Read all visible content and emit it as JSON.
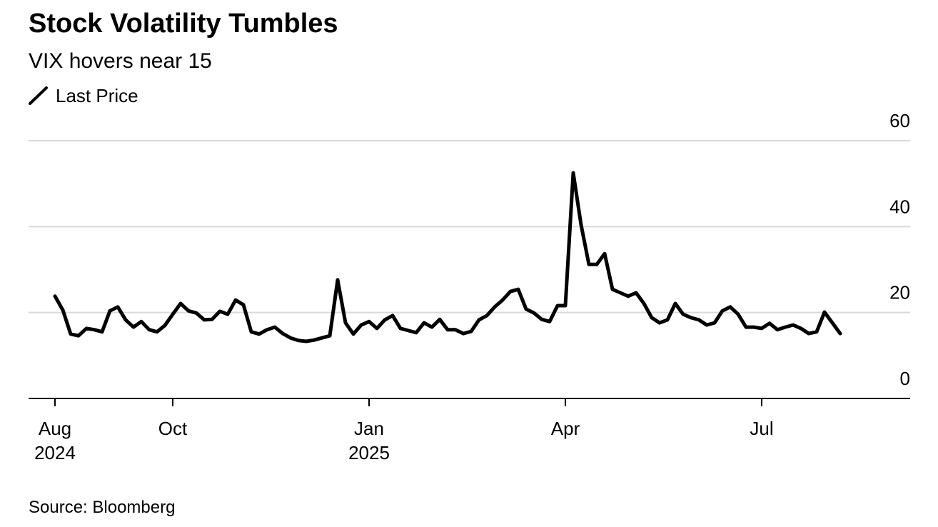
{
  "chart_data": {
    "type": "line",
    "title": "Stock Volatility Tumbles",
    "subtitle": "VIX hovers near 15",
    "source": "Source: Bloomberg",
    "categories": [
      [
        "Aug",
        "2024"
      ],
      null,
      null,
      null,
      null,
      null,
      null,
      null,
      null,
      null,
      null,
      null,
      null,
      null,
      null,
      [
        "Oct"
      ],
      null,
      null,
      null,
      null,
      null,
      null,
      null,
      null,
      null,
      null,
      null,
      null,
      null,
      null,
      null,
      null,
      null,
      null,
      null,
      null,
      null,
      null,
      null,
      null,
      [
        "Jan",
        "2025"
      ],
      null,
      null,
      null,
      null,
      null,
      null,
      null,
      null,
      null,
      null,
      null,
      null,
      null,
      null,
      null,
      null,
      null,
      null,
      null,
      null,
      null,
      null,
      null,
      null,
      [
        "Apr"
      ],
      null,
      null,
      null,
      null,
      null,
      null,
      null,
      null,
      null,
      null,
      null,
      null,
      null,
      null,
      null,
      null,
      null,
      null,
      null,
      null,
      null,
      null,
      null,
      null,
      [
        "Jul"
      ],
      null,
      null,
      null,
      null,
      null,
      null,
      null,
      null,
      null,
      null
    ],
    "series": [
      {
        "name": "Last Price",
        "color": "#000000",
        "values": [
          23.8,
          20.6,
          15,
          14.6,
          16.3,
          16,
          15.5,
          20.4,
          21.3,
          18.3,
          16.6,
          17.9,
          16,
          15.5,
          17,
          19.6,
          22.1,
          20.4,
          19.9,
          18.3,
          18.4,
          20.3,
          19.6,
          22.9,
          21.8,
          15.5,
          15,
          16,
          16.6,
          15.1,
          14.1,
          13.5,
          13.3,
          13.6,
          14.1,
          14.6,
          27.6,
          17.6,
          15,
          17.1,
          17.9,
          16.3,
          18.3,
          19.3,
          16.3,
          15.8,
          15.3,
          17.6,
          16.6,
          18.4,
          16,
          16,
          15.1,
          15.6,
          18.3,
          19.3,
          21.3,
          22.9,
          24.9,
          25.4,
          20.8,
          19.9,
          18.4,
          17.9,
          21.6,
          21.6,
          52.5,
          40.4,
          31.2,
          31.2,
          33.7,
          25.4,
          24.6,
          23.8,
          24.6,
          22.1,
          18.8,
          17.6,
          18.3,
          22.1,
          19.6,
          18.8,
          18.3,
          17.1,
          17.6,
          20.4,
          21.3,
          19.6,
          16.6,
          16.6,
          16.3,
          17.5,
          16,
          16.6,
          17.1,
          16.3,
          15.1,
          15.5,
          20.1,
          17.6,
          15.1
        ]
      }
    ],
    "ylim": [
      0,
      60
    ],
    "yticks": [
      0,
      20,
      40,
      60
    ],
    "grid": true
  }
}
